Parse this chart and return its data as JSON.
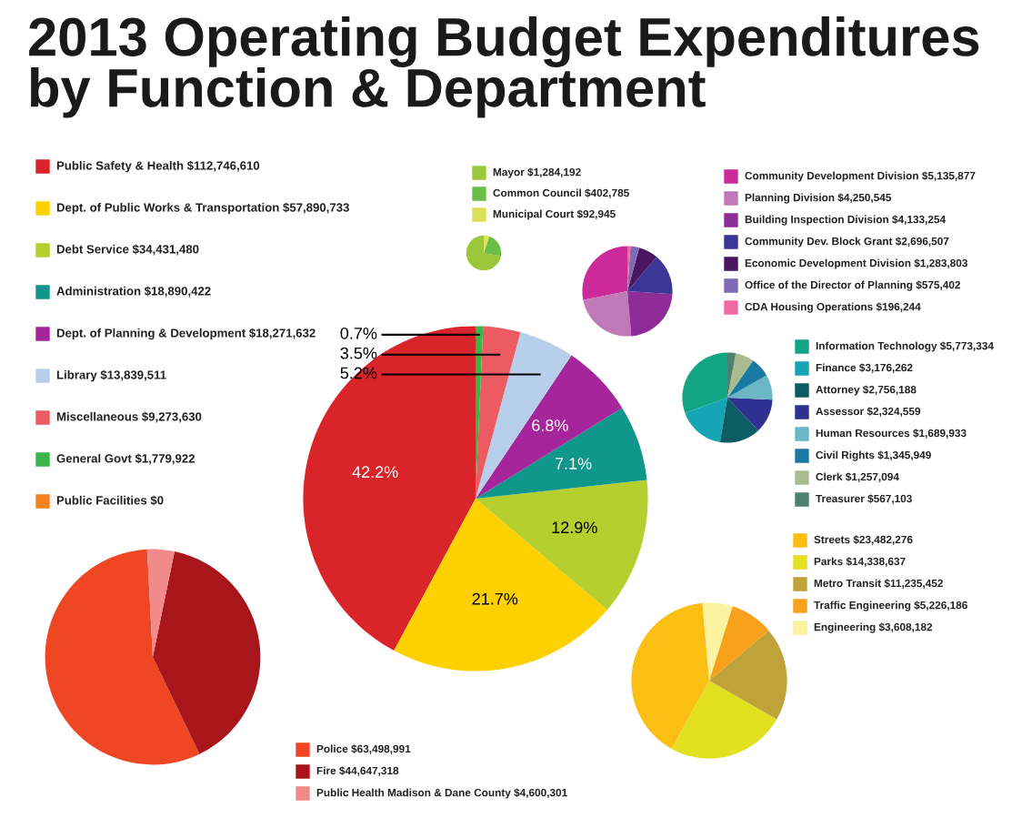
{
  "chart_data": [
    {
      "type": "pie",
      "title": "2013 Operating Budget Expenditures\nby Function & Department",
      "categories": [
        "Public Safety & Health $112,746,610",
        "Dept. of Public Works & Transportation $57,890,733",
        "Debt Service $34,431,480",
        "Administration $18,890,422",
        "Dept. of Planning & Development $18,271,632",
        "Library $13,839,511",
        "Miscellaneous $9,273,630",
        "General Govt $1,779,922",
        "Public Facilities $0"
      ],
      "values": [
        42.2,
        21.7,
        12.9,
        7.1,
        6.8,
        5.2,
        3.5,
        0.7,
        0
      ],
      "colors": [
        "#d9252a",
        "#fdd100",
        "#b5cf2f",
        "#11968c",
        "#a7259a",
        "#b8cfeb",
        "#ec5b61",
        "#3ab54a",
        "#f58220"
      ],
      "value_labels": [
        "42.2%",
        "21.7%",
        "12.9%",
        "7.1%",
        "6.8%",
        "5.2%",
        "3.5%",
        "0.7%",
        null
      ],
      "legend": "left"
    },
    {
      "type": "pie",
      "categories": [
        "Mayor $1,284,192",
        "Common Council $402,785",
        "Municipal Court $92,945"
      ],
      "values": [
        1284192,
        402785,
        92945
      ],
      "colors": [
        "#9dc73b",
        "#6cbd45",
        "#d9e25a"
      ],
      "legend": "top"
    },
    {
      "type": "pie",
      "categories": [
        "Community Development Division $5,135,877",
        "Planning Division $4,250,545",
        "Building Inspection Division $4,133,254",
        "Community Dev. Block Grant $2,696,507",
        "Economic Development Division $1,283,803",
        "Office of the Director of Planning $575,402",
        "CDA Housing Operations $196,244"
      ],
      "values": [
        5135877,
        4250545,
        4133254,
        2696507,
        1283803,
        575402,
        196244
      ],
      "colors": [
        "#cc2a9b",
        "#c07ab8",
        "#8f2d98",
        "#3b3595",
        "#4a165f",
        "#7f6bb5",
        "#ef6aa4"
      ],
      "legend": "right"
    },
    {
      "type": "pie",
      "categories": [
        "Information Technology $5,773,334",
        "Finance $3,176,262",
        "Attorney $2,756,188",
        "Assessor $2,324,559",
        "Human Resources $1,689,933",
        "Civil Rights $1,345,949",
        "Clerk $1,257,094",
        "Treasurer $567,103"
      ],
      "values": [
        5773334,
        3176262,
        2756188,
        2324559,
        1689933,
        1345949,
        1257094,
        567103
      ],
      "colors": [
        "#13a483",
        "#15a5b5",
        "#0c5c63",
        "#2e3192",
        "#6bb7c5",
        "#1a7aa3",
        "#a9bb8f",
        "#4d8070"
      ],
      "legend": "right"
    },
    {
      "type": "pie",
      "categories": [
        "Streets $23,482,276",
        "Parks $14,338,637",
        "Metro Transit $11,235,452",
        "Traffic Engineering $5,226,186",
        "Engineering $3,608,182"
      ],
      "values": [
        23482276,
        14338637,
        11235452,
        5226186,
        3608182
      ],
      "colors": [
        "#fbbf14",
        "#e2e01f",
        "#bfa23a",
        "#f7a11a",
        "#fbf3a0"
      ],
      "legend": "right"
    },
    {
      "type": "pie",
      "categories": [
        "Police $63,498,991",
        "Fire $44,647,318",
        "Public Health Madison & Dane County $4,600,301"
      ],
      "values": [
        63498991,
        44647318,
        4600301
      ],
      "colors": [
        "#ef4623",
        "#a8151b",
        "#f28a8a"
      ],
      "legend": "bottom"
    }
  ]
}
